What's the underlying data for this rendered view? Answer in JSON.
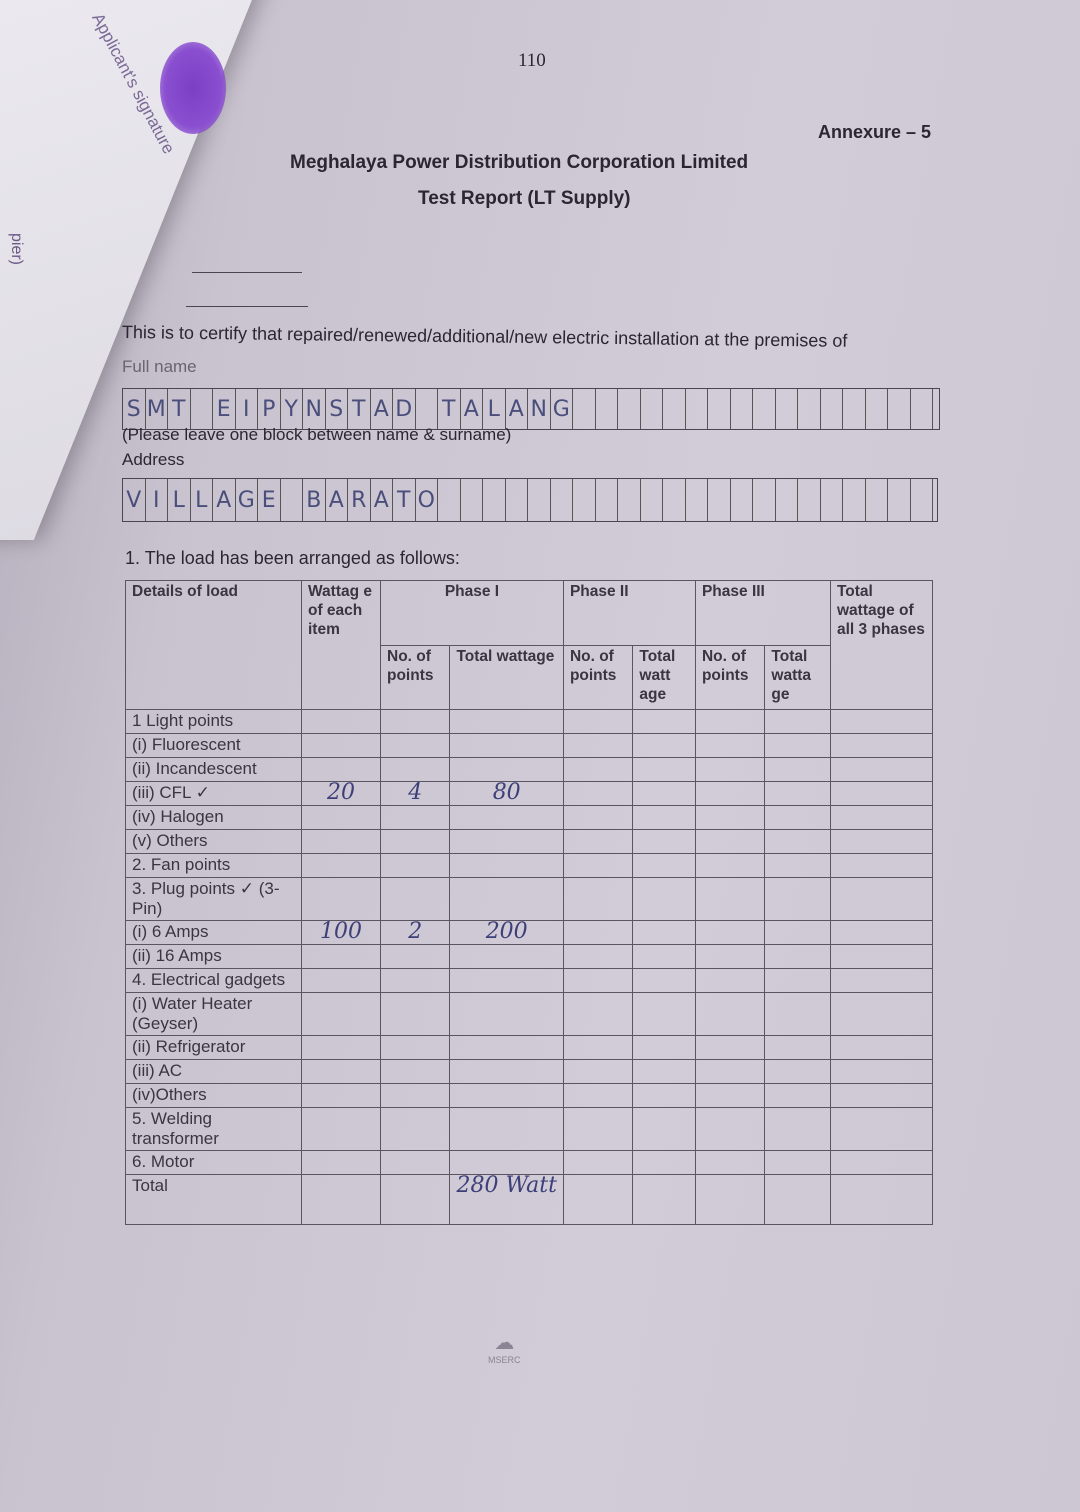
{
  "side_sheet": {
    "text": "Applicant's signature",
    "edge_text": "pier)"
  },
  "page_number": "110",
  "annexure": "Annexure – 5",
  "org": "Meghalaya Power Distribution Corporation Limited",
  "title": "Test Report (LT Supply)",
  "certify_text": "This is to certify that repaired/renewed/additional/new electric installation at the premises of",
  "full_name_label": "Full name",
  "full_name_chars": [
    "S",
    "M",
    "T",
    "",
    "E",
    "I",
    "P",
    "Y",
    "N",
    "S",
    "T",
    "A",
    "D",
    "",
    "T",
    "A",
    "L",
    "A",
    "N",
    "G",
    "",
    "",
    "",
    "",
    "",
    "",
    "",
    "",
    "",
    "",
    "",
    "",
    "",
    "",
    "",
    ""
  ],
  "name_note": "(Please leave one block between name & surname)",
  "address_label": "Address",
  "address_chars": [
    "V",
    "I",
    "L",
    "L",
    "A",
    "G",
    "E",
    "",
    "B",
    "A",
    "R",
    "A",
    "T",
    "O",
    "",
    "",
    "",
    "",
    "",
    "",
    "",
    "",
    "",
    "",
    "",
    "",
    "",
    "",
    "",
    "",
    "",
    "",
    "",
    "",
    "",
    ""
  ],
  "section1": "1. The load has been arranged as follows:",
  "table": {
    "headers": {
      "details": "Details of load",
      "wattage_each": "Wattag e of each item",
      "phase1": "Phase I",
      "phase2": "Phase II",
      "phase3": "Phase III",
      "total_all": "Total wattage of all 3 phases",
      "no_points": "No. of points",
      "total_wattage": "Total wattage",
      "total_watt_age": "Total watt age",
      "total_watta_ge": "Total watta ge"
    },
    "rows": [
      {
        "label": "1  Light points",
        "w": "",
        "p1n": "",
        "p1w": ""
      },
      {
        "label": "(i) Fluorescent",
        "w": "",
        "p1n": "",
        "p1w": ""
      },
      {
        "label": "(ii) Incandescent",
        "w": "",
        "p1n": "",
        "p1w": ""
      },
      {
        "label": "(iii) CFL  ✓",
        "w": "20",
        "p1n": "4",
        "p1w": "80"
      },
      {
        "label": "(iv) Halogen",
        "w": "",
        "p1n": "",
        "p1w": ""
      },
      {
        "label": "(v) Others",
        "w": "",
        "p1n": "",
        "p1w": ""
      },
      {
        "label": "2. Fan points",
        "w": "",
        "p1n": "",
        "p1w": ""
      },
      {
        "label": "3. Plug points ✓ (3-Pin)",
        "w": "",
        "p1n": "",
        "p1w": ""
      },
      {
        "label": "(i) 6 Amps",
        "w": "100",
        "p1n": "2",
        "p1w": "200"
      },
      {
        "label": "(ii) 16 Amps",
        "w": "",
        "p1n": "",
        "p1w": ""
      },
      {
        "label": "4.  Electrical gadgets",
        "w": "",
        "p1n": "",
        "p1w": ""
      },
      {
        "label": "(i) Water Heater (Geyser)",
        "w": "",
        "p1n": "",
        "p1w": ""
      },
      {
        "label": "(ii) Refrigerator",
        "w": "",
        "p1n": "",
        "p1w": ""
      },
      {
        "label": "(iii) AC",
        "w": "",
        "p1n": "",
        "p1w": ""
      },
      {
        "label": "(iv)Others",
        "w": "",
        "p1n": "",
        "p1w": ""
      },
      {
        "label": "5. Welding transformer",
        "w": "",
        "p1n": "",
        "p1w": ""
      },
      {
        "label": "6. Motor",
        "w": "",
        "p1n": "",
        "p1w": ""
      },
      {
        "label": "Total",
        "w": "",
        "p1n": "",
        "p1w": "280 Watt"
      }
    ]
  },
  "footer_logo": "MSERC"
}
